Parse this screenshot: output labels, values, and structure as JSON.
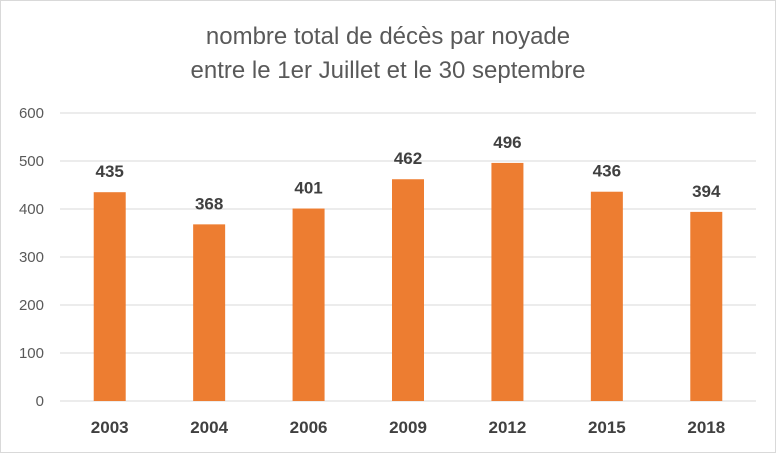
{
  "chart_data": {
    "type": "bar",
    "title_lines": [
      "nombre total de décès par noyade",
      "entre le 1er Juillet et le 30 septembre"
    ],
    "categories": [
      "2003",
      "2004",
      "2006",
      "2009",
      "2012",
      "2015",
      "2018"
    ],
    "values": [
      435,
      368,
      401,
      462,
      496,
      436,
      394
    ],
    "ylim": [
      0,
      600
    ],
    "yticks": [
      "0",
      "100",
      "200",
      "300",
      "400",
      "500",
      "600"
    ],
    "grid": true,
    "data_labels": true,
    "bar_color": "#ed7d31",
    "grid_color": "#d9d9d9"
  }
}
